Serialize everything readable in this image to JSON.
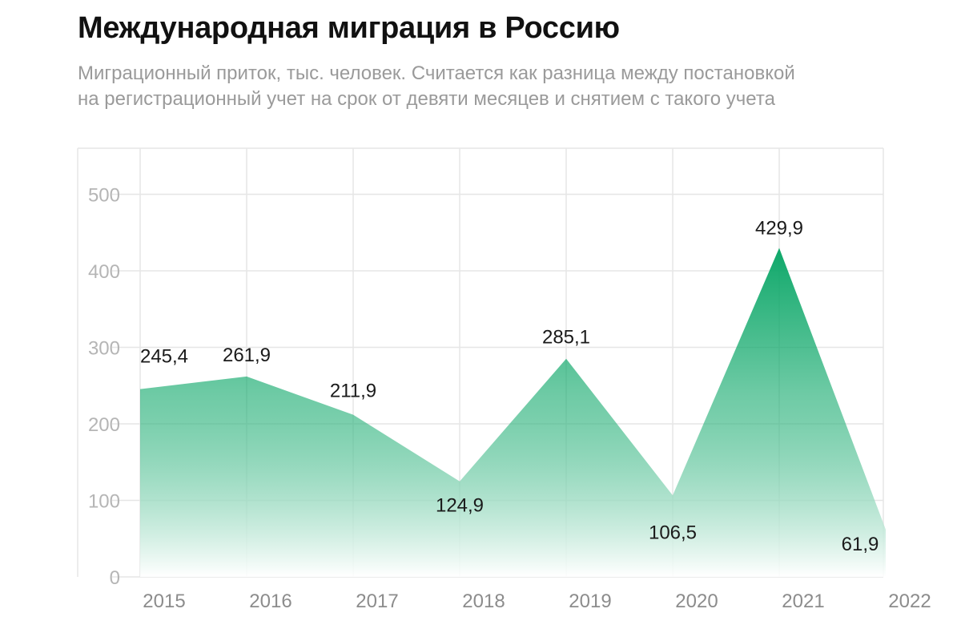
{
  "title": "Международная миграция в Россию",
  "subtitle": "Миграционный приток, тыс. человек. Считается как разница между постановкой на регистрационный учет на срок от девяти месяцев и снятием с такого учета",
  "colors": {
    "area_top": "#0fa86a",
    "area_bottom": "#ffffff",
    "grid": "#e6e6e6"
  },
  "chart_data": {
    "type": "area",
    "categories": [
      "2015",
      "2016",
      "2017",
      "2018",
      "2019",
      "2020",
      "2021",
      "2022"
    ],
    "values": [
      245.4,
      261.9,
      211.9,
      124.9,
      285.1,
      106.5,
      429.9,
      61.9
    ],
    "data_labels": [
      "245,4",
      "261,9",
      "211,9",
      "124,9",
      "285,1",
      "106,5",
      "429,9",
      "61,9"
    ],
    "yticks": [
      "0",
      "100",
      "200",
      "300",
      "400",
      "500"
    ],
    "ylim": [
      0,
      500
    ],
    "xlabel": "",
    "ylabel": "",
    "grid": true,
    "legend": "none"
  }
}
